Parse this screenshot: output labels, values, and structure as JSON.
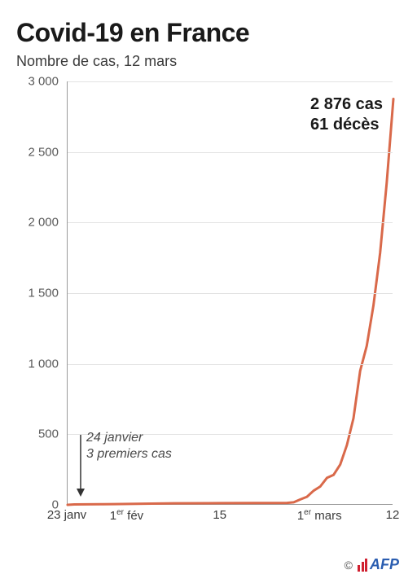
{
  "title": "Covid-19 en France",
  "subtitle": "Nombre de cas, 12 mars",
  "chart": {
    "type": "line",
    "line_color": "#d9694a",
    "line_width": 3,
    "background_color": "#ffffff",
    "grid_color": "#e2e2e2",
    "axis_color": "#9a9a9a",
    "ylim": [
      0,
      3000
    ],
    "ytick_step": 500,
    "yticks": [
      "0",
      "500",
      "1 000",
      "1 500",
      "2 000",
      "2 500",
      "3 000"
    ],
    "xlim_days": [
      0,
      49
    ],
    "xticks": [
      {
        "day": 0,
        "label": "23 janv"
      },
      {
        "day": 9,
        "label": "1<sup>er</sup> fév"
      },
      {
        "day": 23,
        "label": "15"
      },
      {
        "day": 38,
        "label": "1<sup>er</sup> mars"
      },
      {
        "day": 49,
        "label": "12"
      }
    ],
    "series": [
      {
        "day": 0,
        "cases": 0
      },
      {
        "day": 1,
        "cases": 3
      },
      {
        "day": 5,
        "cases": 4
      },
      {
        "day": 7,
        "cases": 5
      },
      {
        "day": 16,
        "cases": 11
      },
      {
        "day": 23,
        "cases": 12
      },
      {
        "day": 33,
        "cases": 14
      },
      {
        "day": 34,
        "cases": 18
      },
      {
        "day": 35,
        "cases": 38
      },
      {
        "day": 36,
        "cases": 57
      },
      {
        "day": 37,
        "cases": 100
      },
      {
        "day": 38,
        "cases": 130
      },
      {
        "day": 39,
        "cases": 191
      },
      {
        "day": 40,
        "cases": 212
      },
      {
        "day": 41,
        "cases": 285
      },
      {
        "day": 42,
        "cases": 423
      },
      {
        "day": 43,
        "cases": 613
      },
      {
        "day": 44,
        "cases": 949
      },
      {
        "day": 45,
        "cases": 1126
      },
      {
        "day": 46,
        "cases": 1412
      },
      {
        "day": 47,
        "cases": 1784
      },
      {
        "day": 48,
        "cases": 2281
      },
      {
        "day": 49,
        "cases": 2876
      }
    ]
  },
  "callout": {
    "line1": "24 janvier",
    "line2": "3 premiers cas",
    "points_to_day": 1
  },
  "stat_box": {
    "line1": "2 876 cas",
    "line2": "61 décès"
  },
  "credit": {
    "copyright": "©",
    "source": "AFP"
  },
  "typography": {
    "title_fontsize": 32,
    "subtitle_fontsize": 18,
    "tick_fontsize": 15,
    "annot_fontsize": 16,
    "statbox_fontsize": 20
  }
}
